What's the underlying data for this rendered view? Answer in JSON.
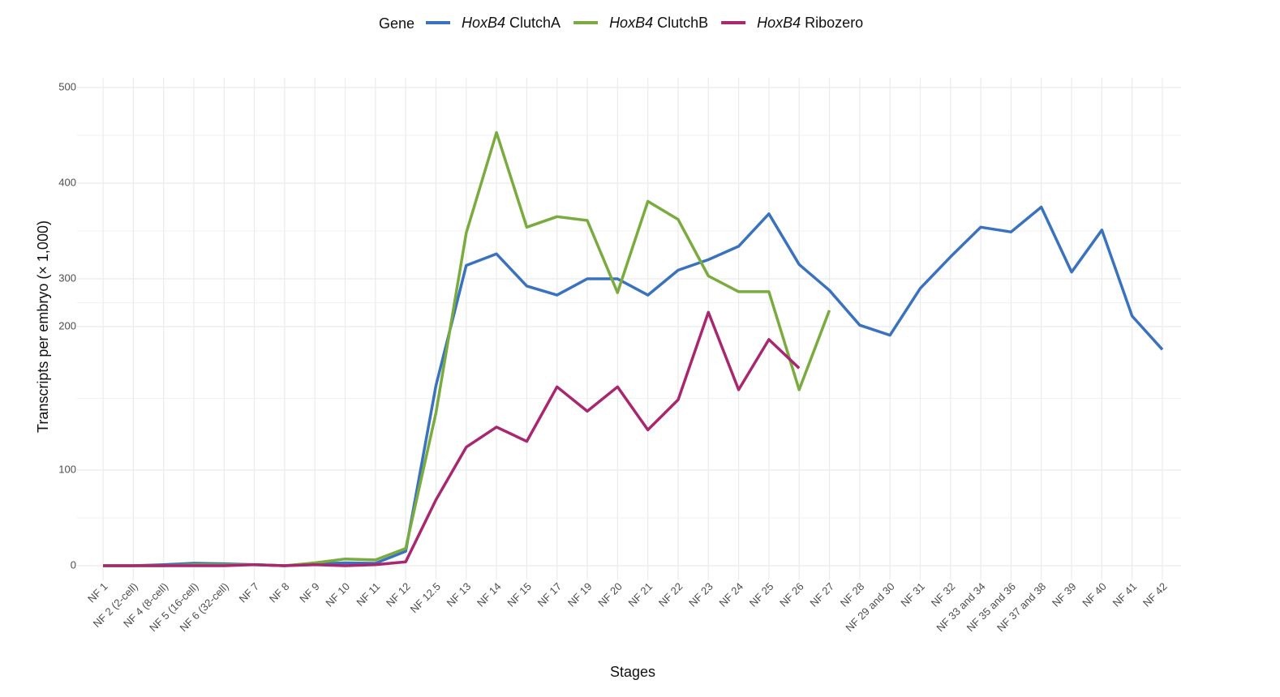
{
  "chart_data": {
    "type": "line",
    "legend_title": "Gene",
    "legend_position": "top",
    "x_label": "Stages",
    "y_label": "Transcripts per embryo (× 1,000)",
    "categories": [
      "NF 1",
      "NF 2 (2-cell)",
      "NF 4 (8-cell)",
      "NF 5 (16-cell)",
      "NF 6 (32-cell)",
      "NF 7",
      "NF 8",
      "NF 9",
      "NF 10",
      "NF 11",
      "NF 12",
      "NF 12.5",
      "NF 13",
      "NF 14",
      "NF 15",
      "NF 17",
      "NF 19",
      "NF 20",
      "NF 21",
      "NF 22",
      "NF 23",
      "NF 24",
      "NF 25",
      "NF 26",
      "NF 27",
      "NF 28",
      "NF 29 and 30",
      "NF 31",
      "NF 32",
      "NF 33 and 34",
      "NF 35 and 36",
      "NF 37 and 38",
      "NF 39",
      "NF 40",
      "NF 41",
      "NF 42"
    ],
    "series": [
      {
        "name": "HoxB4 ClutchA",
        "color": "#3a72bf",
        "values": [
          0,
          0,
          1,
          2.5,
          2,
          1,
          0,
          2,
          3,
          2.5,
          15,
          159,
          314,
          326,
          285,
          266,
          300,
          300,
          266,
          309,
          320,
          334,
          368,
          315,
          276,
          203,
          194,
          280,
          323,
          354,
          349,
          375,
          307,
          351,
          222,
          184
        ]
      },
      {
        "name": "HoxB4 ClutchB",
        "color": "#7aab3e",
        "values": [
          0,
          0,
          0,
          1,
          1,
          1,
          0,
          3,
          7,
          6,
          18,
          140,
          348,
          453,
          354,
          365,
          361,
          271,
          381,
          362,
          303,
          273,
          273,
          156,
          234,
          null,
          null,
          null,
          null,
          null,
          null,
          null,
          null,
          null,
          null,
          null
        ]
      },
      {
        "name": "HoxB4 Ribozero",
        "color": "#a8276f",
        "values": [
          0,
          0,
          0,
          0,
          0,
          1,
          0,
          1,
          0,
          1,
          4,
          69,
          116,
          130,
          120,
          158,
          141,
          158,
          128,
          149,
          230,
          156,
          191,
          171,
          null,
          null,
          null,
          null,
          null,
          null,
          null,
          null,
          null,
          null,
          null,
          null
        ]
      }
    ],
    "ylim": [
      -15,
      510
    ],
    "yticks": [
      0,
      100,
      200,
      300,
      400,
      500
    ],
    "y_minor_ticks": [
      50,
      150,
      250,
      350,
      450
    ],
    "grid": true
  }
}
